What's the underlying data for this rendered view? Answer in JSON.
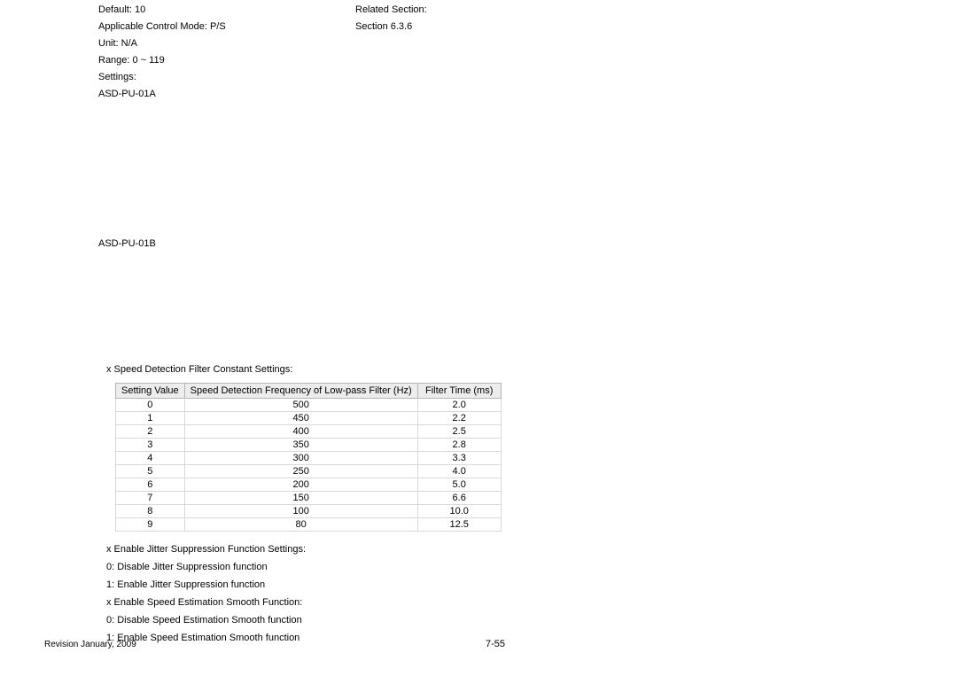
{
  "left": {
    "default": "Default: 10",
    "mode": "Applicable Control Mode: P/S",
    "unit": "Unit: N/A",
    "range": "Range: 0 ~ 119",
    "settings": "Settings:",
    "asda": "ASD-PU-01A",
    "asdb": "ASD-PU-01B"
  },
  "right": {
    "related": "Related Section:",
    "section": "Section 6.3.6"
  },
  "notes": {
    "title": "x  Speed Detection Filter Constant Settings:"
  },
  "table": {
    "headers": [
      "Setting Value",
      "Speed Detection Frequency of Low-pass Filter (Hz)",
      "Filter Time (ms)"
    ],
    "rows": [
      [
        "0",
        "500",
        "2.0"
      ],
      [
        "1",
        "450",
        "2.2"
      ],
      [
        "2",
        "400",
        "2.5"
      ],
      [
        "3",
        "350",
        "2.8"
      ],
      [
        "4",
        "300",
        "3.3"
      ],
      [
        "5",
        "250",
        "4.0"
      ],
      [
        "6",
        "200",
        "5.0"
      ],
      [
        "7",
        "150",
        "6.6"
      ],
      [
        "8",
        "100",
        "10.0"
      ],
      [
        "9",
        "80",
        "12.5"
      ]
    ]
  },
  "below": {
    "l1": "x  Enable Jitter Suppression Function Settings:",
    "l2": "0: Disable Jitter Suppression function",
    "l3": "1: Enable Jitter Suppression function",
    "l4": "x  Enable Speed Estimation Smooth Function:",
    "l5": "0: Disable Speed Estimation Smooth function",
    "l6": "1: Enable Speed Estimation Smooth function"
  },
  "footer": {
    "rev": "Revision January, 2009",
    "page": "7-55"
  }
}
